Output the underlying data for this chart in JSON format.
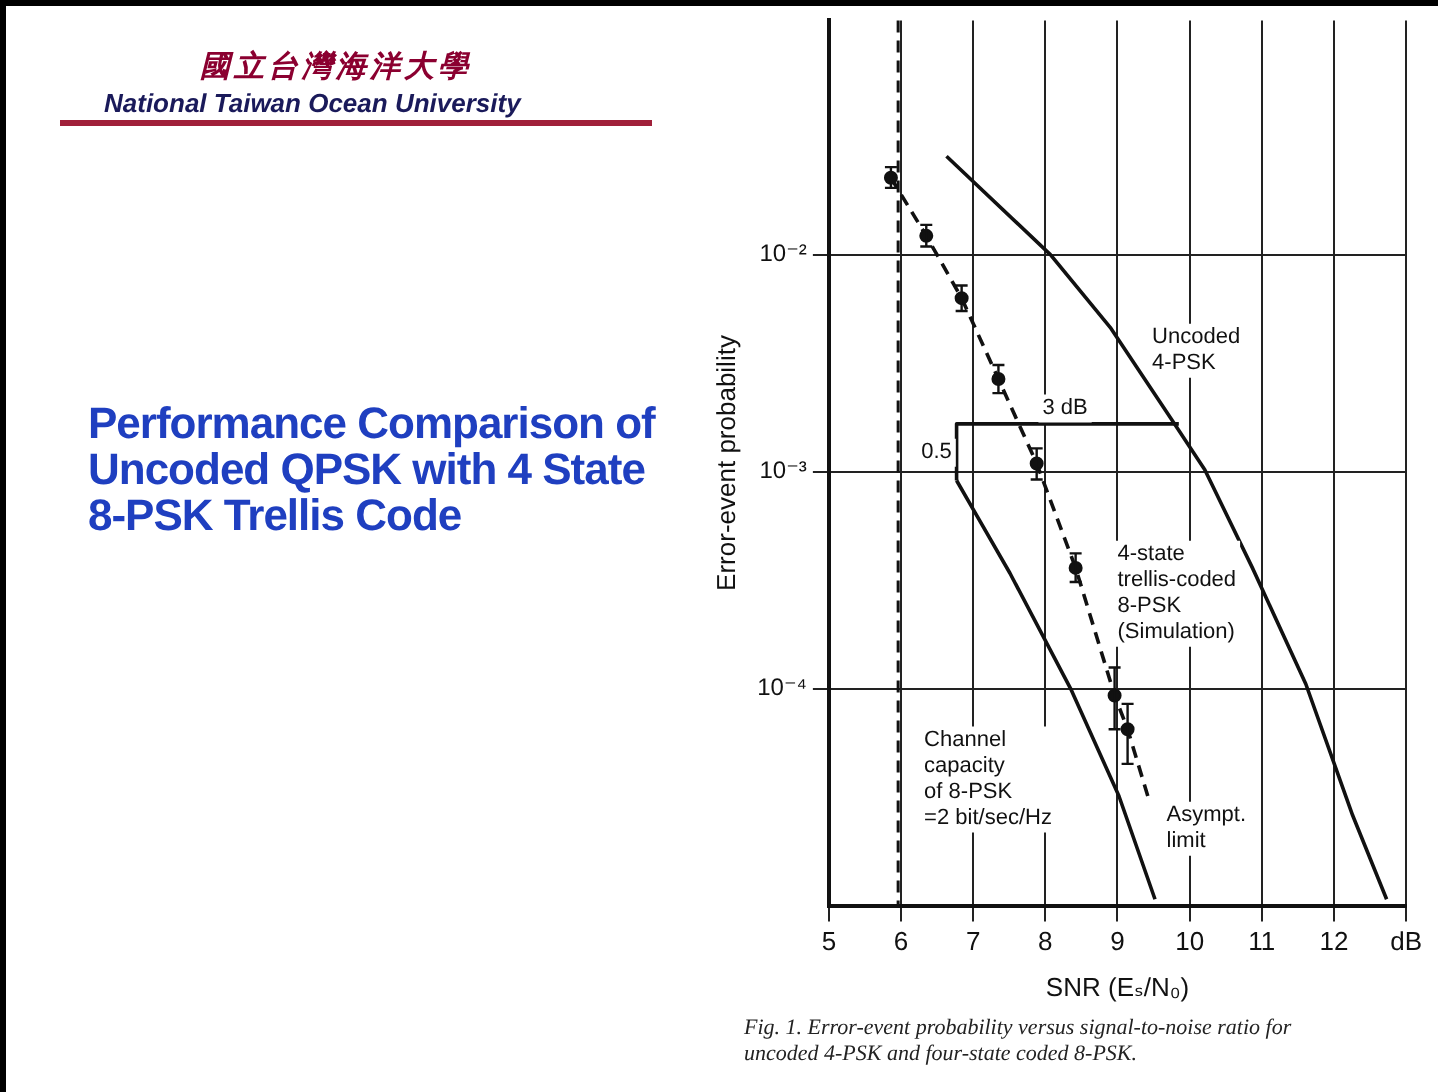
{
  "chart_data": {
    "type": "line",
    "title": "Performance Comparison of Uncoded QPSK with 4 State 8-PSK Trellis Code",
    "xlabel": "SNR (Eₛ/N₀)",
    "ylabel": "Error-event probability",
    "log": "y",
    "grid": true,
    "xlim": [
      5,
      13
    ],
    "xticks": [
      5,
      6,
      7,
      8,
      9,
      10,
      11,
      12,
      {
        "value": 13,
        "label": "dB"
      }
    ],
    "ylim": [
      1e-05,
      0.12
    ],
    "yticks": [
      {
        "value": 0.01,
        "label": "10⁻²"
      },
      {
        "value": 0.001,
        "label": "10⁻³"
      },
      {
        "value": 0.0001,
        "label": "10⁻⁴"
      }
    ],
    "ref_lines": [
      {
        "axis": "x",
        "value": 5.96,
        "color": "#111111",
        "line_style": "dashed"
      }
    ],
    "series": [
      {
        "type": "scatter",
        "color": "#111111",
        "marker": "circle",
        "x": [
          5.86,
          6.35,
          6.84,
          7.35,
          7.88,
          8.42,
          8.96,
          9.14
        ],
        "values": [
          0.0226,
          0.0122,
          0.0063,
          0.00267,
          0.00109,
          0.00036,
          9.3e-05,
          6.5e-05
        ],
        "errors": [
          [
            0.0203,
            0.0253
          ],
          [
            0.0109,
            0.0137
          ],
          [
            0.0055,
            0.0072
          ],
          [
            0.0023,
            0.0031
          ],
          [
            0.00092,
            0.00128
          ],
          [
            0.00031,
            0.00042
          ],
          [
            6.5e-05,
            0.000125
          ],
          [
            4.5e-05,
            8.5e-05
          ]
        ]
      },
      {
        "type": "line",
        "color": "#111111",
        "marker": "none",
        "line_style": "dashed",
        "x": [
          5.86,
          6.35,
          6.84,
          7.35,
          7.88,
          8.42,
          8.96,
          9.14,
          9.42
        ],
        "values": [
          0.0226,
          0.0122,
          0.0063,
          0.00267,
          0.00109,
          0.00036,
          9.3e-05,
          6.5e-05,
          3.2e-05
        ]
      },
      {
        "type": "line",
        "color": "#111111",
        "marker": "none",
        "line_style": "solid",
        "x": [
          6.63,
          8.07,
          8.91,
          9.75,
          10.21,
          10.87,
          11.61,
          12.26,
          12.73
        ],
        "values": [
          0.0284,
          0.01,
          0.00457,
          0.00174,
          0.00102,
          0.00036,
          0.000105,
          2.6e-05,
          1.07e-05
        ]
      },
      {
        "type": "line",
        "color": "#111111",
        "marker": "none",
        "line_style": "solid",
        "x": [
          6.77,
          7.51,
          8.35,
          9.02,
          9.52
        ],
        "values": [
          0.00091,
          0.00034,
          0.0001,
          3.2e-05,
          1.07e-05
        ]
      },
      {
        "type": "line",
        "color": "#111111",
        "marker": "none",
        "line_style": "solid",
        "x": [
          6.77,
          6.77,
          9.85
        ],
        "values": [
          0.00091,
          0.00166,
          0.00166
        ]
      }
    ],
    "annotations": [
      "國立台灣海洋大學",
      "National Taiwan Ocean University",
      "Fig. 1.   Error-event probability versus signal-to-noise ratio for uncoded 4-PSK and four-state coded 8-PSK.",
      "Uncoded\n4-PSK",
      "4-state\ntrellis-coded\n8-PSK\n(Simulation)",
      "Asympt.\nlimit",
      "Channel\ncapacity\nof 8-PSK\n=2 bit/sec/Hz",
      "3 dB",
      "0.5"
    ]
  }
}
